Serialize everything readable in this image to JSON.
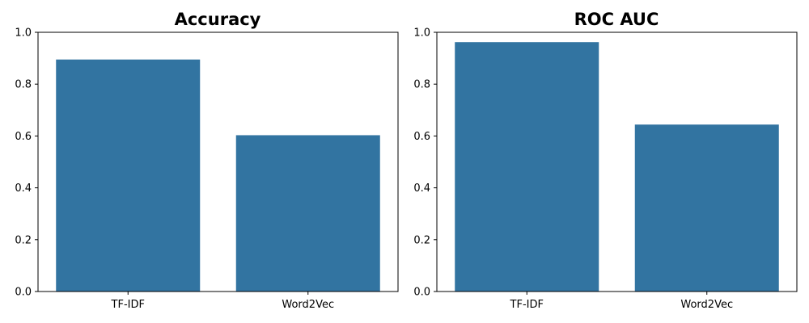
{
  "chart_data": [
    {
      "type": "bar",
      "title": "Accuracy",
      "categories": [
        "TF-IDF",
        "Word2Vec"
      ],
      "values": [
        0.895,
        0.603
      ],
      "xlabel": "",
      "ylabel": "",
      "ylim": [
        0,
        1.0
      ],
      "yticks": [
        "0.0",
        "0.2",
        "0.4",
        "0.6",
        "0.8",
        "1.0"
      ],
      "bar_color": "#3274a1",
      "grid": false
    },
    {
      "type": "bar",
      "title": "ROC AUC",
      "categories": [
        "TF-IDF",
        "Word2Vec"
      ],
      "values": [
        0.962,
        0.644
      ],
      "xlabel": "",
      "ylabel": "",
      "ylim": [
        0,
        1.0
      ],
      "yticks": [
        "0.0",
        "0.2",
        "0.4",
        "0.6",
        "0.8",
        "1.0"
      ],
      "bar_color": "#3274a1",
      "grid": false
    }
  ]
}
